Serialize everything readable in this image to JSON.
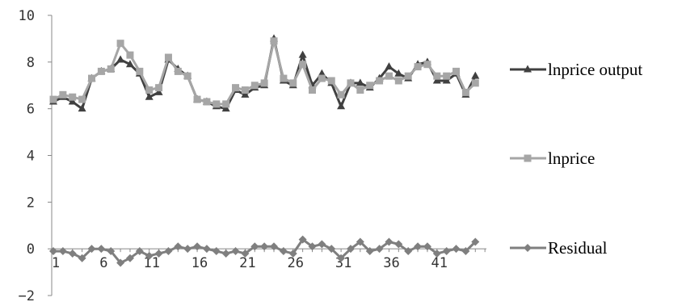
{
  "chart_data": {
    "type": "line",
    "title": "",
    "xlabel": "",
    "ylabel": "",
    "ylim": [
      -2,
      10
    ],
    "yticks": [
      -2,
      0,
      2,
      4,
      6,
      8,
      10
    ],
    "x": [
      1,
      2,
      3,
      4,
      5,
      6,
      7,
      8,
      9,
      10,
      11,
      12,
      13,
      14,
      15,
      16,
      17,
      18,
      19,
      20,
      21,
      22,
      23,
      24,
      25,
      26,
      27,
      28,
      29,
      30,
      31,
      32,
      33,
      34,
      35,
      36,
      37,
      38,
      39,
      40,
      41,
      42,
      43,
      44,
      45,
      46
    ],
    "xtick_labels": [
      "1",
      "6",
      "11",
      "16",
      "21",
      "26",
      "31",
      "36",
      "41"
    ],
    "grid": false,
    "legend_position": "right",
    "series": [
      {
        "name": "lnprice output",
        "color": "#404040",
        "marker": "triangle",
        "values": [
          6.3,
          6.5,
          6.3,
          6.0,
          7.3,
          7.6,
          7.7,
          8.1,
          7.9,
          7.5,
          6.5,
          6.7,
          8.1,
          7.7,
          7.4,
          6.4,
          6.3,
          6.1,
          6.0,
          6.8,
          6.6,
          6.9,
          7.0,
          9.0,
          7.2,
          7.0,
          8.3,
          7.0,
          7.5,
          7.1,
          6.1,
          7.1,
          7.1,
          6.9,
          7.3,
          7.8,
          7.5,
          7.3,
          7.9,
          8.0,
          7.2,
          7.2,
          7.5,
          6.6,
          7.4,
          null
        ]
      },
      {
        "name": "lnprice",
        "color": "#a6a6a6",
        "marker": "square",
        "values": [
          6.4,
          6.6,
          6.5,
          6.4,
          7.3,
          7.6,
          7.7,
          8.8,
          8.3,
          7.6,
          6.8,
          6.9,
          8.2,
          7.6,
          7.4,
          6.4,
          6.3,
          6.2,
          6.2,
          6.9,
          6.8,
          7.0,
          7.1,
          8.9,
          7.3,
          7.1,
          7.9,
          6.8,
          7.3,
          7.2,
          6.6,
          7.1,
          6.8,
          7.0,
          7.2,
          7.4,
          7.2,
          7.4,
          7.8,
          7.9,
          7.4,
          7.4,
          7.6,
          6.7,
          7.1,
          null
        ]
      },
      {
        "name": "Residual",
        "color": "#7f7f7f",
        "marker": "diamond",
        "values": [
          -0.1,
          -0.1,
          -0.2,
          -0.4,
          0.0,
          0.0,
          -0.1,
          -0.6,
          -0.4,
          -0.1,
          -0.3,
          -0.2,
          -0.1,
          0.1,
          0.0,
          0.1,
          0.0,
          -0.1,
          -0.2,
          -0.1,
          -0.2,
          0.1,
          0.1,
          0.1,
          -0.1,
          -0.2,
          0.4,
          0.1,
          0.2,
          0.0,
          -0.4,
          0.0,
          0.3,
          -0.1,
          0.0,
          0.3,
          0.2,
          -0.1,
          0.1,
          0.1,
          -0.2,
          -0.1,
          0.0,
          -0.1,
          0.3,
          null
        ]
      }
    ]
  }
}
